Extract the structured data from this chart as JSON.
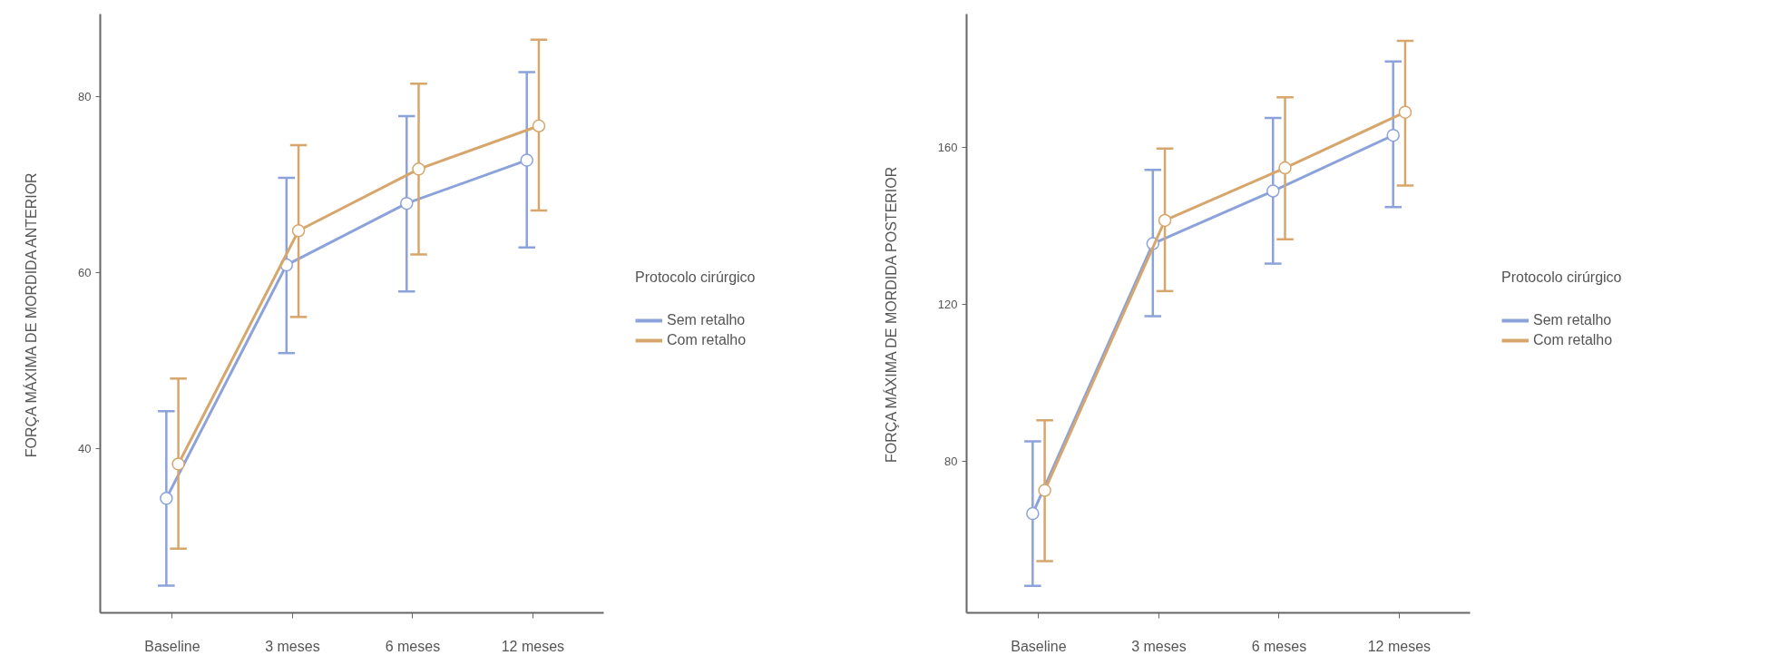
{
  "chart_data": [
    {
      "type": "line",
      "ylabel": "FORÇA MÁXIMA DE MORDIDA ANTERIOR",
      "legend_title": "Protocolo cirúrgico",
      "legend": "right",
      "grid": false,
      "marker": "circle",
      "line_style": "solid",
      "categories": [
        "Baseline",
        "3 meses",
        "6 meses",
        "12 meses"
      ],
      "ylim": [
        21.4,
        89.4
      ],
      "yticks": [
        40,
        60,
        80
      ],
      "series": [
        {
          "name": "Sem retalho",
          "color": "#8ca2da",
          "values": [
            34.4,
            60.9,
            67.9,
            72.8
          ],
          "errors": [
            [
              24.5,
              44.3
            ],
            [
              50.9,
              70.8
            ],
            [
              57.9,
              77.8
            ],
            [
              62.9,
              82.8
            ]
          ]
        },
        {
          "name": "Com retalho",
          "color": "#d6a66c",
          "values": [
            38.3,
            64.8,
            71.8,
            76.7
          ],
          "errors": [
            [
              28.7,
              48.0
            ],
            [
              55.0,
              74.5
            ],
            [
              62.1,
              81.5
            ],
            [
              67.1,
              86.5
            ]
          ]
        }
      ]
    },
    {
      "type": "line",
      "ylabel": "FORÇA MÁXIMA DE MORDIDA POSTERIOR",
      "legend_title": "Protocolo cirúrgico",
      "legend": "right",
      "grid": false,
      "marker": "circle",
      "line_style": "solid",
      "categories": [
        "Baseline",
        "3 meses",
        "6 meses",
        "12 meses"
      ],
      "ylim": [
        41.4,
        194
      ],
      "yticks": [
        80,
        120,
        160
      ],
      "series": [
        {
          "name": "Sem retalho",
          "color": "#8ca2da",
          "values": [
            66.7,
            135.5,
            148.9,
            163.1
          ],
          "errors": [
            [
              48.3,
              85.1
            ],
            [
              117.0,
              154.3
            ],
            [
              130.4,
              167.5
            ],
            [
              144.8,
              181.9
            ]
          ]
        },
        {
          "name": "Com retalho",
          "color": "#d6a66c",
          "values": [
            72.6,
            141.4,
            154.8,
            169.0
          ],
          "errors": [
            [
              54.6,
              90.5
            ],
            [
              123.4,
              159.7
            ],
            [
              136.6,
              172.8
            ],
            [
              150.3,
              187.2
            ]
          ]
        }
      ]
    }
  ]
}
